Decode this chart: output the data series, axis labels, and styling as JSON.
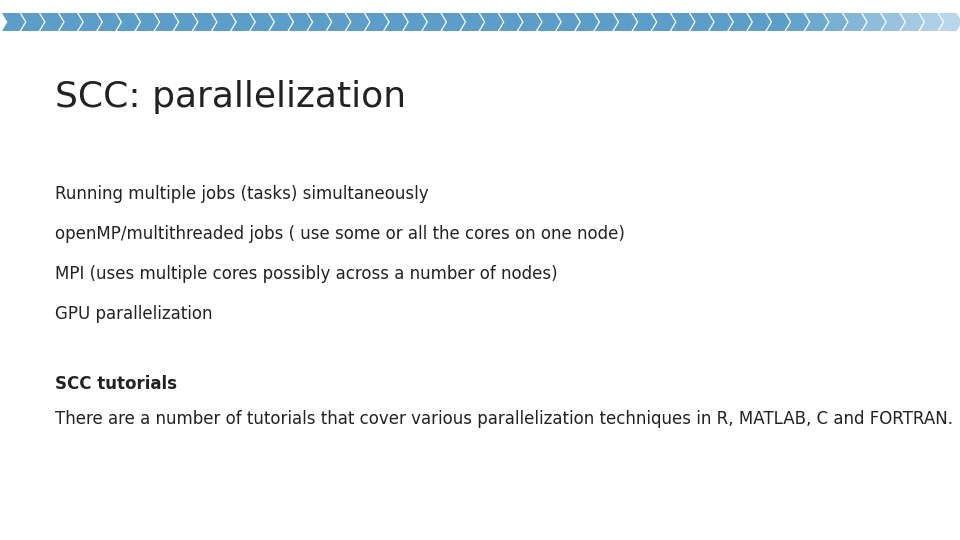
{
  "title": "SCC: parallelization",
  "bullet1": "Running multiple jobs (tasks) simultaneously",
  "bullet2": "openMP/multithreaded jobs ( use some or all the cores on one node)",
  "bullet3": "MPI (uses multiple cores possibly across a number of nodes)",
  "bullet4": "GPU parallelization",
  "section_header": "SCC tutorials",
  "section_body": "There are a number of tutorials that cover various parallelization techniques in R, MATLAB, C and FORTRAN.",
  "bg_color": "#ffffff",
  "title_color": "#222222",
  "text_color": "#222222",
  "arrow_dark": "#5b9ec9",
  "arrow_light": "#b8d7ea",
  "title_fontsize": 26,
  "body_fontsize": 12,
  "header_fontsize": 12,
  "num_arrows": 50
}
